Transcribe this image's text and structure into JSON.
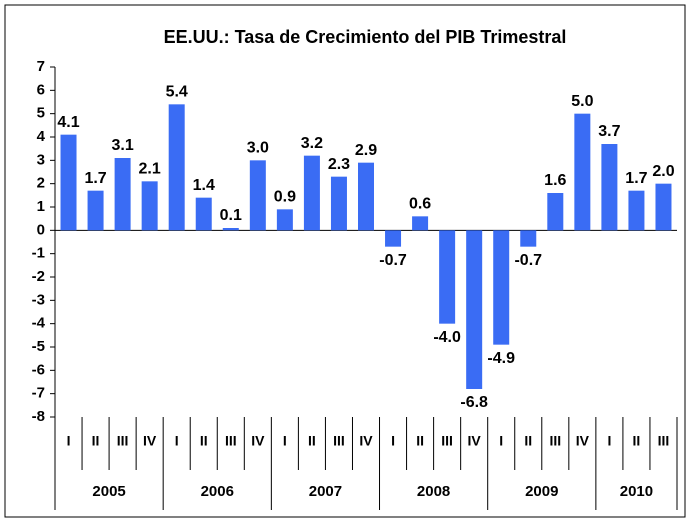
{
  "chart_data": {
    "type": "bar",
    "title": "EE.UU.: Tasa de Crecimiento del PIB Trimestral",
    "categories": [
      "I",
      "II",
      "III",
      "IV",
      "I",
      "II",
      "III",
      "IV",
      "I",
      "II",
      "III",
      "IV",
      "I",
      "II",
      "III",
      "IV",
      "I",
      "II",
      "III",
      "IV",
      "I",
      "II",
      "III"
    ],
    "years": [
      "2005",
      "2006",
      "2007",
      "2008",
      "2009",
      "2010"
    ],
    "values": [
      4.1,
      1.7,
      3.1,
      2.1,
      5.4,
      1.4,
      0.1,
      3.0,
      0.9,
      3.2,
      2.3,
      2.9,
      -0.7,
      0.6,
      -4.0,
      -6.8,
      -4.9,
      -0.7,
      1.6,
      5.0,
      3.7,
      1.7,
      2.0
    ],
    "value_labels": [
      "4.1",
      "1.7",
      "3.1",
      "2.1",
      "5.4",
      "1.4",
      "0.1",
      "3.0",
      "0.9",
      "3.2",
      "2.3",
      "2.9",
      "-0.7",
      "0.6",
      "-4.0",
      "-6.8",
      "-4.9",
      "-0.7",
      "1.6",
      "5.0",
      "3.7",
      "1.7",
      "2.0"
    ],
    "color": "#3a6cf4",
    "ylim": [
      -8,
      7
    ],
    "yticks": [
      -8,
      -7,
      -6,
      -5,
      -4,
      -3,
      -2,
      -1,
      0,
      1,
      2,
      3,
      4,
      5,
      6,
      7
    ],
    "grid": false
  }
}
